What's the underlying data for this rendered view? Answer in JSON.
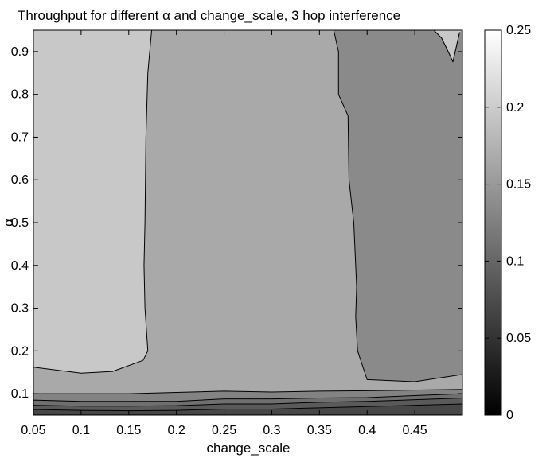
{
  "chart_data": {
    "type": "contourf",
    "title": "Throughput for different α and change_scale, 3 hop interference",
    "xlabel": "change_scale",
    "ylabel": "α",
    "xlim": [
      0.05,
      0.5
    ],
    "ylim": [
      0.05,
      0.95
    ],
    "xticks": [
      "0.05",
      "0.1",
      "0.15",
      "0.2",
      "0.25",
      "0.3",
      "0.35",
      "0.4",
      "0.45"
    ],
    "yticks": [
      "0.1",
      "0.2",
      "0.3",
      "0.4",
      "0.5",
      "0.6",
      "0.7",
      "0.8",
      "0.9"
    ],
    "colorbar": {
      "range": [
        0,
        0.25
      ],
      "ticks": [
        "0",
        "0.05",
        "0.1",
        "0.15",
        "0.2",
        "0.25"
      ],
      "colormap": "gray",
      "low_color": "#000000",
      "high_color": "#ffffff"
    },
    "contour_levels": [
      {
        "level": 0.175,
        "fill": "#c8c8c8",
        "description": "left high region",
        "path": [
          [
            0.05,
            0.162
          ],
          [
            0.1,
            0.148
          ],
          [
            0.133,
            0.152
          ],
          [
            0.165,
            0.178
          ],
          [
            0.17,
            0.2
          ],
          [
            0.167,
            0.3
          ],
          [
            0.166,
            0.4
          ],
          [
            0.167,
            0.5
          ],
          [
            0.168,
            0.7
          ],
          [
            0.17,
            0.85
          ],
          [
            0.174,
            0.95
          ],
          [
            0.05,
            0.95
          ]
        ]
      },
      {
        "level": 0.175,
        "fill": "#c8c8c8",
        "description": "top-right corner region",
        "path": [
          [
            0.47,
            0.95
          ],
          [
            0.478,
            0.932
          ],
          [
            0.485,
            0.9
          ],
          [
            0.49,
            0.876
          ],
          [
            0.497,
            0.945
          ],
          [
            0.5,
            0.95
          ]
        ]
      },
      {
        "level": 0.125,
        "fill": "#8a8a8a",
        "description": "right low region",
        "path": [
          [
            0.5,
            0.145
          ],
          [
            0.45,
            0.128
          ],
          [
            0.4,
            0.133
          ],
          [
            0.39,
            0.2
          ],
          [
            0.388,
            0.28
          ],
          [
            0.389,
            0.35
          ],
          [
            0.386,
            0.5
          ],
          [
            0.381,
            0.6
          ],
          [
            0.38,
            0.75
          ],
          [
            0.37,
            0.8
          ],
          [
            0.37,
            0.9
          ],
          [
            0.365,
            0.95
          ],
          [
            0.45,
            0.95
          ],
          [
            0.47,
            0.95
          ],
          [
            0.478,
            0.932
          ],
          [
            0.485,
            0.9
          ],
          [
            0.49,
            0.876
          ],
          [
            0.497,
            0.945
          ],
          [
            0.5,
            0.95
          ]
        ]
      }
    ],
    "bottom_bands": [
      {
        "level": 0.1,
        "fill": "#838383",
        "y": [
          0.1,
          0.1,
          0.1,
          0.103,
          0.106,
          0.104,
          0.106,
          0.107,
          0.11
        ]
      },
      {
        "level": 0.075,
        "fill": "#6f6f6f",
        "y": [
          0.085,
          0.082,
          0.082,
          0.082,
          0.088,
          0.088,
          0.09,
          0.091,
          0.1
        ]
      },
      {
        "level": 0.05,
        "fill": "#5a5a5a",
        "y": [
          0.073,
          0.071,
          0.071,
          0.072,
          0.076,
          0.076,
          0.08,
          0.082,
          0.09
        ]
      },
      {
        "level": 0.025,
        "fill": "#474747",
        "y": [
          0.063,
          0.061,
          0.06,
          0.061,
          0.064,
          0.064,
          0.067,
          0.07,
          0.076
        ]
      }
    ],
    "band_x": [
      0.05,
      0.1,
      0.15,
      0.2,
      0.25,
      0.3,
      0.35,
      0.4,
      0.5
    ],
    "region_fills": {
      "middle": "#a9a9a9",
      "base": "#9c9c9c"
    },
    "grid": false
  }
}
